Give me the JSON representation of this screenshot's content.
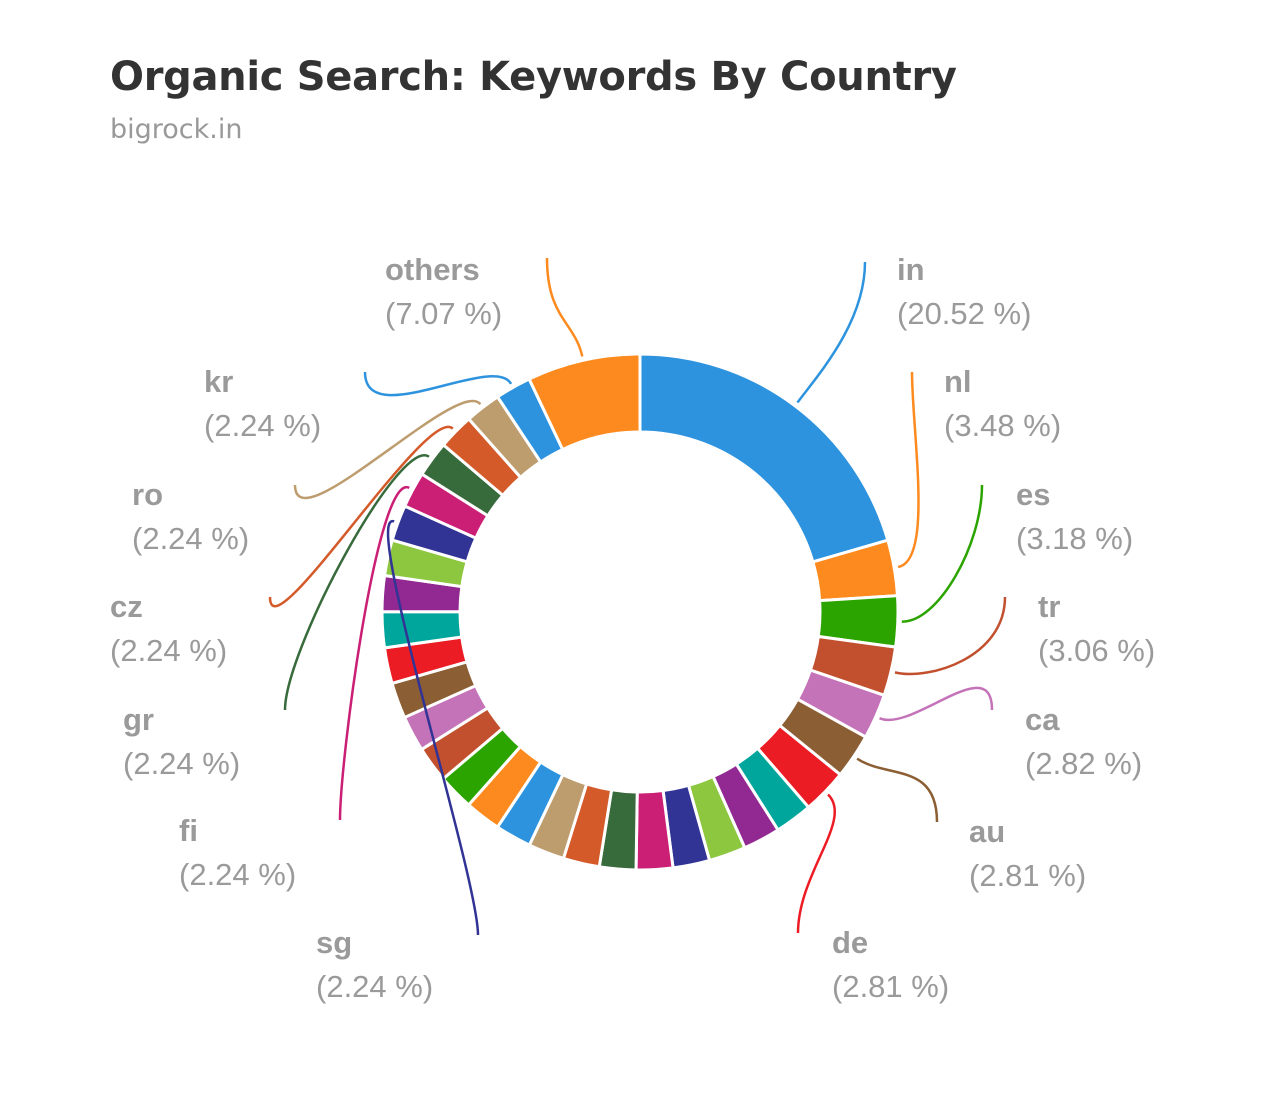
{
  "chart_data": {
    "type": "pie",
    "variant": "donut",
    "title": "Organic Search: Keywords By Country",
    "subtitle": "bigrock.in",
    "colors": [
      "#2e93de",
      "#fd8a1e",
      "#2ca400",
      "#c2502e",
      "#c573b9",
      "#8b5e34",
      "#ec1c24",
      "#00a59b",
      "#922891",
      "#8dc63f",
      "#313395",
      "#cb1f76",
      "#386b3c",
      "#d45a2a",
      "#bd9c6e"
    ],
    "slices": [
      {
        "label": "in",
        "value": 20.52,
        "display": "(20.52 %)"
      },
      {
        "label": "nl",
        "value": 3.48,
        "display": "(3.48 %)"
      },
      {
        "label": "es",
        "value": 3.18,
        "display": "(3.18 %)"
      },
      {
        "label": "tr",
        "value": 3.06,
        "display": "(3.06 %)"
      },
      {
        "label": "ca",
        "value": 2.82,
        "display": "(2.82 %)"
      },
      {
        "label": "au",
        "value": 2.81,
        "display": "(2.81 %)"
      },
      {
        "label": "de",
        "value": 2.81,
        "display": "(2.81 %)"
      },
      {
        "label": "",
        "value": 2.35
      },
      {
        "label": "",
        "value": 2.33
      },
      {
        "label": "",
        "value": 2.31
      },
      {
        "label": "",
        "value": 2.3
      },
      {
        "label": "",
        "value": 2.29
      },
      {
        "label": "",
        "value": 2.28
      },
      {
        "label": "",
        "value": 2.27
      },
      {
        "label": "",
        "value": 2.26
      },
      {
        "label": "",
        "value": 2.26
      },
      {
        "label": "",
        "value": 2.25
      },
      {
        "label": "",
        "value": 2.25
      },
      {
        "label": "",
        "value": 2.25
      },
      {
        "label": "",
        "value": 2.24
      },
      {
        "label": "",
        "value": 2.24
      },
      {
        "label": "",
        "value": 2.24
      },
      {
        "label": "",
        "value": 2.24
      },
      {
        "label": "",
        "value": 2.24
      },
      {
        "label": "",
        "value": 2.24
      },
      {
        "label": "sg",
        "value": 2.24,
        "display": "(2.24 %)"
      },
      {
        "label": "fi",
        "value": 2.24,
        "display": "(2.24 %)"
      },
      {
        "label": "gr",
        "value": 2.24,
        "display": "(2.24 %)"
      },
      {
        "label": "cz",
        "value": 2.24,
        "display": "(2.24 %)"
      },
      {
        "label": "ro",
        "value": 2.24,
        "display": "(2.24 %)"
      },
      {
        "label": "kr",
        "value": 2.24,
        "display": "(2.24 %)"
      },
      {
        "label": "others",
        "value": 7.07,
        "display": "(7.07 %)"
      }
    ],
    "legend": "none (outside labels with leader lines)"
  }
}
